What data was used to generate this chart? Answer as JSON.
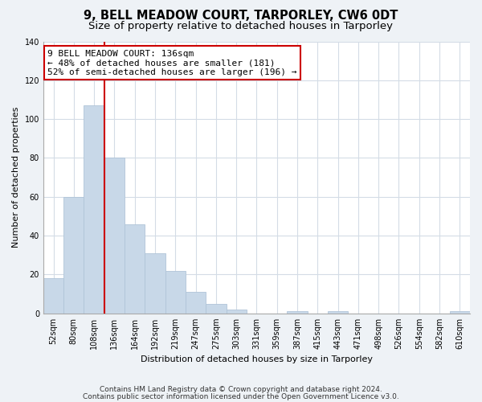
{
  "title": "9, BELL MEADOW COURT, TARPORLEY, CW6 0DT",
  "subtitle": "Size of property relative to detached houses in Tarporley",
  "xlabel": "Distribution of detached houses by size in Tarporley",
  "ylabel": "Number of detached properties",
  "bar_labels": [
    "52sqm",
    "80sqm",
    "108sqm",
    "136sqm",
    "164sqm",
    "192sqm",
    "219sqm",
    "247sqm",
    "275sqm",
    "303sqm",
    "331sqm",
    "359sqm",
    "387sqm",
    "415sqm",
    "443sqm",
    "471sqm",
    "498sqm",
    "526sqm",
    "554sqm",
    "582sqm",
    "610sqm"
  ],
  "bar_values": [
    18,
    60,
    107,
    80,
    46,
    31,
    22,
    11,
    5,
    2,
    0,
    0,
    1,
    0,
    1,
    0,
    0,
    0,
    0,
    0,
    1
  ],
  "bar_color": "#c8d8e8",
  "bar_edge_color": "#b0c4d8",
  "vline_index": 3,
  "vline_color": "#cc0000",
  "annotation_line1": "9 BELL MEADOW COURT: 136sqm",
  "annotation_line2": "← 48% of detached houses are smaller (181)",
  "annotation_line3": "52% of semi-detached houses are larger (196) →",
  "annotation_box_color": "#ffffff",
  "annotation_box_edge": "#cc0000",
  "ylim": [
    0,
    140
  ],
  "yticks": [
    0,
    20,
    40,
    60,
    80,
    100,
    120,
    140
  ],
  "footer1": "Contains HM Land Registry data © Crown copyright and database right 2024.",
  "footer2": "Contains public sector information licensed under the Open Government Licence v3.0.",
  "bg_color": "#eef2f6",
  "plot_bg_color": "#ffffff",
  "title_fontsize": 10.5,
  "subtitle_fontsize": 9.5,
  "axis_label_fontsize": 8,
  "tick_fontsize": 7,
  "annotation_fontsize": 8,
  "footer_fontsize": 6.5,
  "grid_color": "#d4dce6",
  "grid_linewidth": 0.8
}
